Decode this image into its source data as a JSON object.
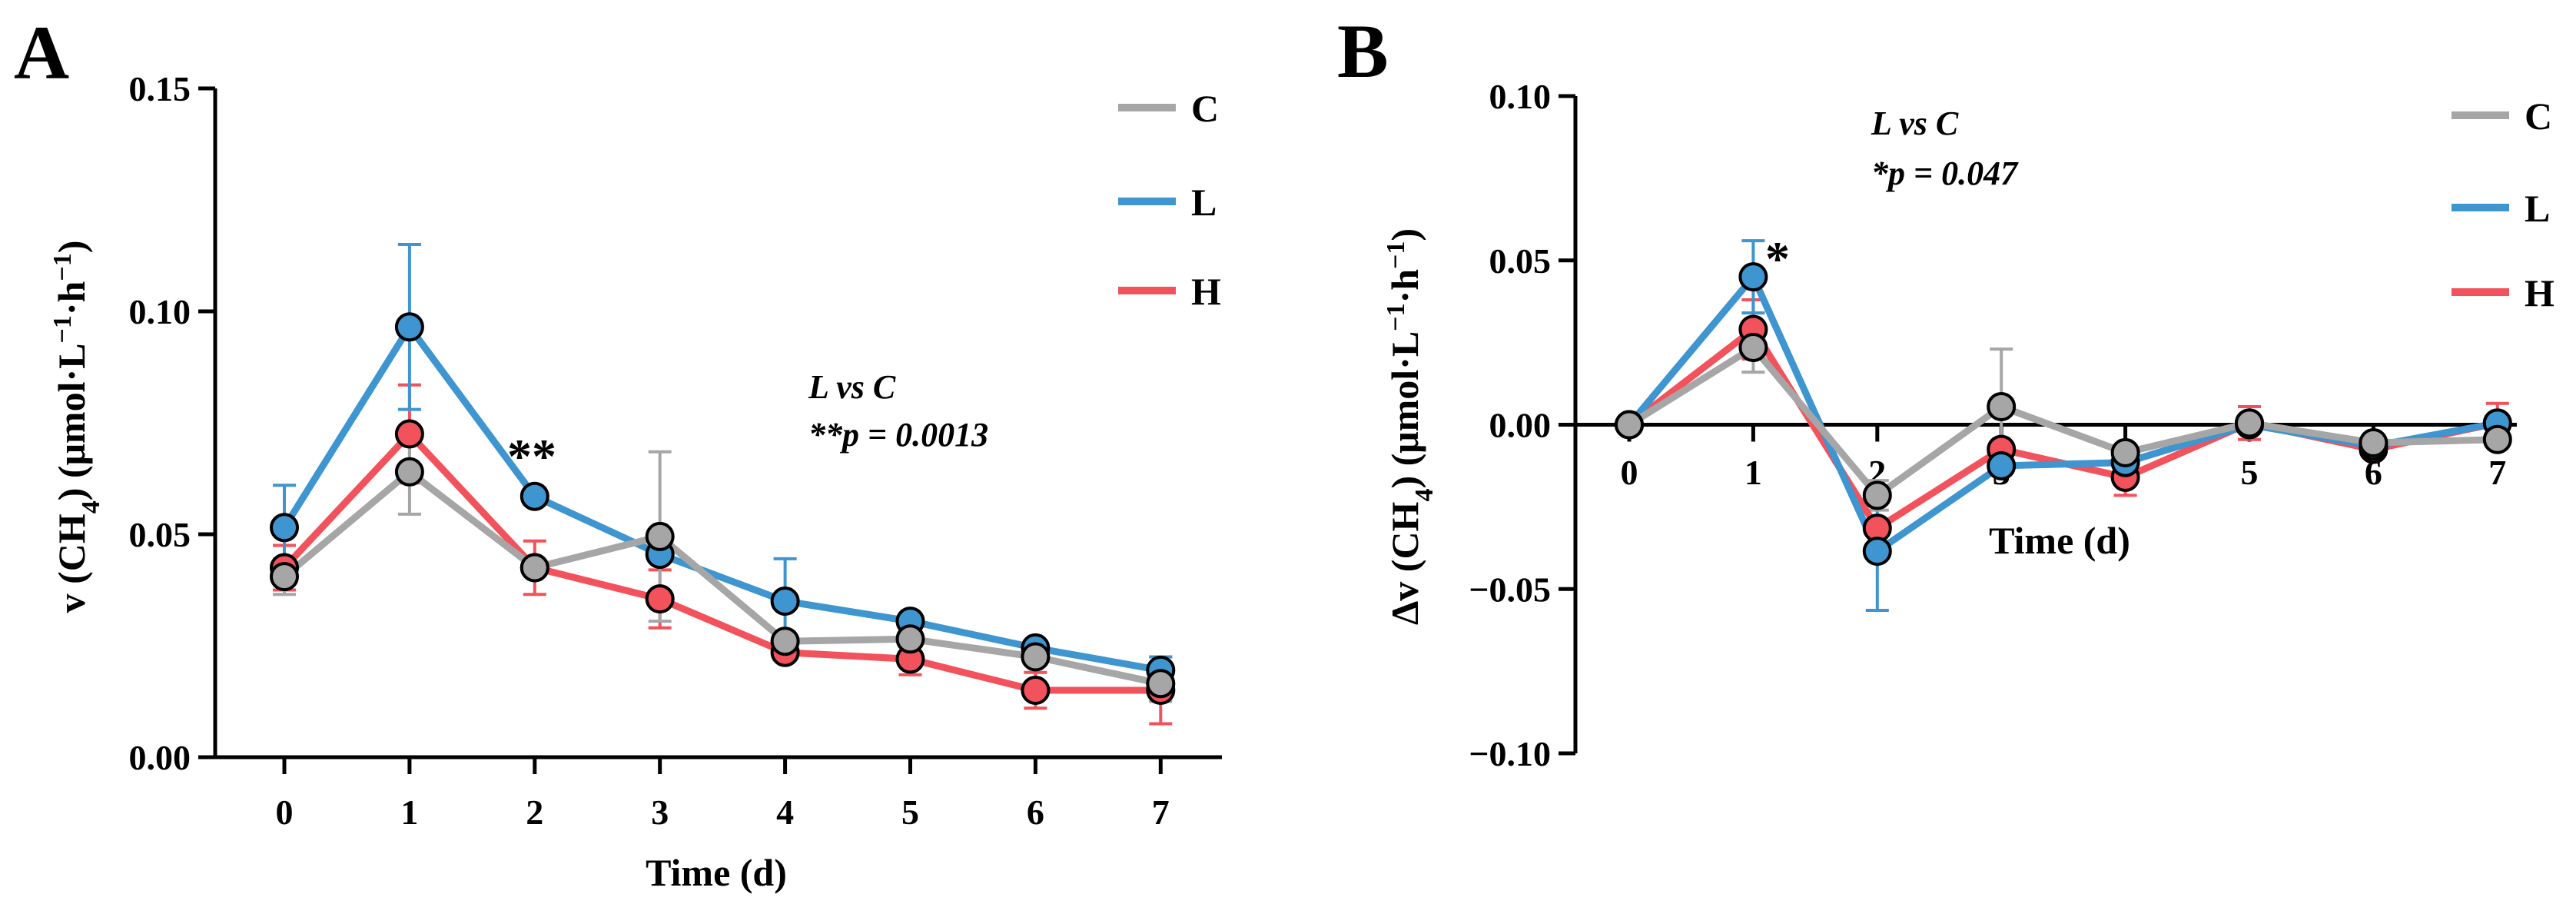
{
  "colors": {
    "C": "#a6a6a6",
    "L": "#3e95cf",
    "H": "#f2525c",
    "axis": "#000000"
  },
  "chart_data": [
    {
      "panel": "A",
      "type": "line",
      "xlabel": "Time (d)",
      "ylabel_prefix": "v (CH",
      "ylabel_sub4": "4",
      "ylabel_mid": ") (μmol·L",
      "ylabel_sup1": "−1",
      "ylabel_mid2": "·h",
      "ylabel_sup2": "−1",
      "ylabel_end": ")",
      "x": [
        0,
        1,
        2,
        3,
        4,
        5,
        6,
        7
      ],
      "x_tick_labels": [
        "0",
        "1",
        "2",
        "3",
        "4",
        "5",
        "6",
        "7"
      ],
      "ylim": [
        0,
        0.15
      ],
      "y_ticks": [
        0,
        0.05,
        0.1,
        0.15
      ],
      "y_tick_labels": [
        "0.00",
        "0.05",
        "0.10",
        "0.15"
      ],
      "series": [
        {
          "name": "C",
          "values": [
            0.0405,
            0.064,
            0.0425,
            0.0495,
            0.026,
            0.0265,
            0.0225,
            0.0165
          ],
          "errors": [
            0.004,
            0.0095,
            0.0,
            0.019,
            0.0,
            0.0,
            0.0,
            0.004
          ]
        },
        {
          "name": "L",
          "values": [
            0.0515,
            0.0965,
            0.0585,
            0.0455,
            0.035,
            0.0305,
            0.0245,
            0.0195
          ],
          "errors": [
            0.0095,
            0.0185,
            0.0,
            0.0,
            0.0095,
            0.0,
            0.0,
            0.003
          ]
        },
        {
          "name": "H",
          "values": [
            0.0425,
            0.0725,
            0.0425,
            0.0355,
            0.0235,
            0.022,
            0.015,
            0.015
          ],
          "errors": [
            0.005,
            0.011,
            0.006,
            0.0065,
            0.0,
            0.0035,
            0.004,
            0.0075
          ]
        }
      ],
      "legend": [
        "C",
        "L",
        "H"
      ],
      "legend_position": "top-right",
      "annotations": [
        {
          "text": "L vs C",
          "italic": true
        },
        {
          "text": "**p = 0.0013",
          "italic": true
        }
      ],
      "significance_markers": [
        {
          "x": 2,
          "text": "**"
        }
      ]
    },
    {
      "panel": "B",
      "type": "line",
      "xlabel": "Time (d)",
      "ylabel_prefix": "Δv (CH",
      "ylabel_sub4": "4",
      "ylabel_mid": ") (μmol·L",
      "ylabel_sup1": "−1",
      "ylabel_mid2": "·h",
      "ylabel_sup2": "−1",
      "ylabel_end": ")",
      "x": [
        0,
        1,
        2,
        3,
        4,
        5,
        6,
        7
      ],
      "x_tick_labels": [
        "0",
        "1",
        "2",
        "3",
        "4",
        "5",
        "6",
        "7"
      ],
      "ylim": [
        -0.1,
        0.1
      ],
      "y_ticks": [
        -0.1,
        -0.05,
        0.0,
        0.05,
        0.1
      ],
      "y_tick_labels": [
        "−0.10",
        "−0.05",
        "0.00",
        "0.05",
        "0.10"
      ],
      "series": [
        {
          "name": "C",
          "values": [
            0.0,
            0.0235,
            -0.0215,
            0.0055,
            -0.0085,
            0.0005,
            -0.0055,
            -0.0045
          ],
          "errors": [
            0.0,
            0.0075,
            0.0045,
            0.0175,
            0.0,
            0.0,
            0.0,
            0.0
          ]
        },
        {
          "name": "L",
          "values": [
            0.0,
            0.045,
            -0.0385,
            -0.0125,
            -0.0115,
            0.0,
            -0.0065,
            0.0005
          ],
          "errors": [
            0.0,
            0.011,
            0.018,
            0.0,
            0.0,
            0.0,
            0.0,
            0.0
          ]
        },
        {
          "name": "H",
          "values": [
            0.0,
            0.029,
            -0.0315,
            -0.0075,
            -0.016,
            0.0005,
            -0.0075,
            0.0005
          ],
          "errors": [
            0.0,
            0.009,
            0.0,
            0.0,
            0.0055,
            0.005,
            0.0,
            0.006
          ]
        }
      ],
      "legend": [
        "C",
        "L",
        "H"
      ],
      "legend_position": "top-right",
      "annotations": [
        {
          "text": "L vs C",
          "italic": true
        },
        {
          "text": "*p = 0.047",
          "italic": true
        }
      ],
      "significance_markers": [
        {
          "x": 1,
          "text": "*"
        }
      ]
    }
  ]
}
